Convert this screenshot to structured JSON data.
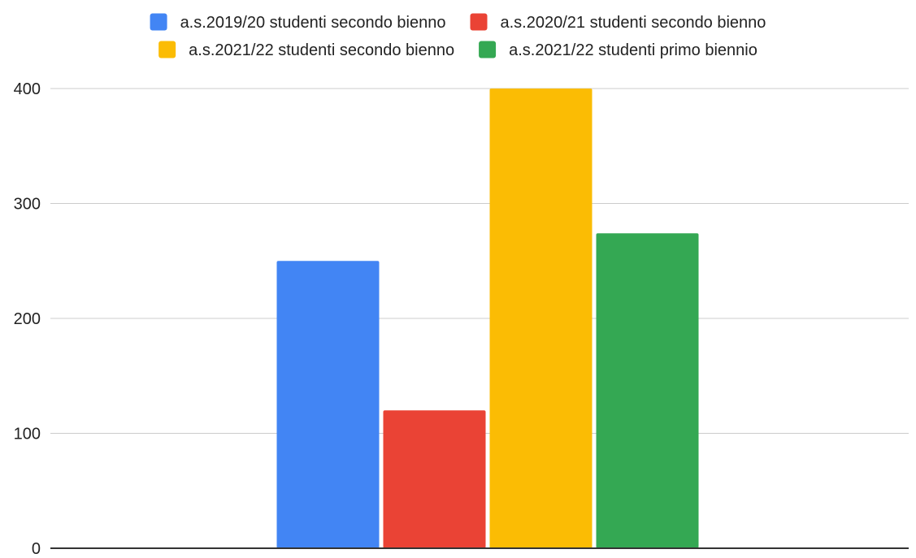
{
  "chart_data": {
    "type": "bar",
    "categories": [
      ""
    ],
    "series": [
      {
        "name": "a.s.2019/20 studenti secondo bienno",
        "values": [
          250
        ],
        "color": "#4285F4"
      },
      {
        "name": "a.s.2020/21 studenti secondo bienno",
        "values": [
          120
        ],
        "color": "#EA4335"
      },
      {
        "name": "a.s.2021/22 studenti secondo bienno",
        "values": [
          400
        ],
        "color": "#FBBC04"
      },
      {
        "name": "a.s.2021/22 studenti primo biennio",
        "values": [
          274
        ],
        "color": "#34A853"
      }
    ],
    "yticks": [
      0,
      100,
      200,
      300,
      400
    ],
    "ylim": [
      0,
      400
    ],
    "grid": true,
    "legend_position": "top"
  }
}
